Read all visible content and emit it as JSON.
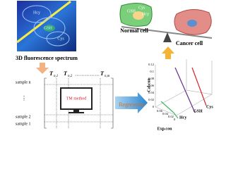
{
  "spectrum": {
    "label": "3D fluorescence spectrum",
    "marks": [
      "Hcy",
      "GSH",
      "Cys"
    ]
  },
  "cells": {
    "normal": {
      "label": "Normal cell",
      "marks": [
        "GSH",
        "Cys",
        "Hcy"
      ]
    },
    "cancer": {
      "label": "Cancer cell"
    }
  },
  "matrix": {
    "columns": [
      {
        "symbol": "T",
        "index": "n,1"
      },
      {
        "symbol": "T",
        "index": "n,2"
      },
      {
        "symbol": "T",
        "index": "n,m"
      }
    ],
    "column_gap": "……………",
    "rows": [
      "sample n",
      "sample 2",
      "sample 1"
    ],
    "row_gap": "⋮",
    "method": "TM method"
  },
  "arrow": {
    "label": "Regression"
  },
  "plot": {
    "y_label": "Cal.con",
    "x_label": "Exp.con",
    "y_ticks": [
      "0.12",
      "0.1",
      "0.08",
      "0.06",
      "0.04",
      "0.02",
      "0"
    ],
    "x_ticks": [
      "0.06",
      "0.04",
      "0.02",
      "0"
    ],
    "series": [
      "GSH",
      "Cys",
      "Hcy"
    ]
  }
}
